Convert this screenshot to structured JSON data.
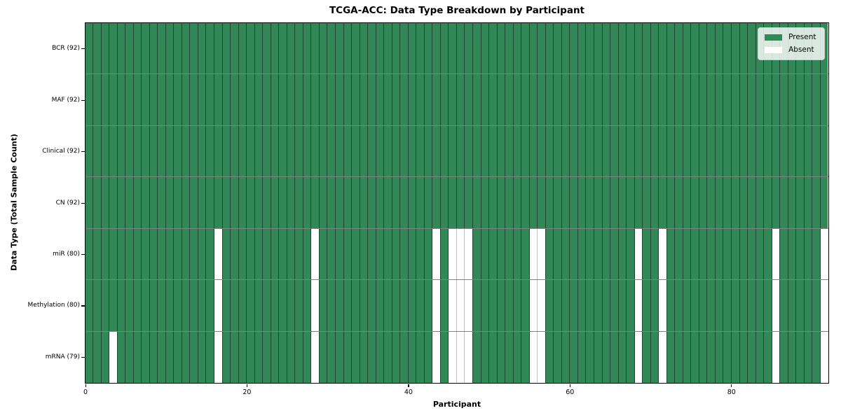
{
  "chart_data": {
    "type": "heatmap",
    "title": "TCGA-ACC: Data Type Breakdown by Participant",
    "xlabel": "Participant",
    "ylabel": "Data Type (Total Sample Count)",
    "n_participants": 92,
    "x_axis_range": [
      0,
      92
    ],
    "x_ticks": [
      0,
      20,
      40,
      60,
      80
    ],
    "legend_position": "upper right",
    "legend": [
      {
        "label": "Present",
        "color": "#2e8b57"
      },
      {
        "label": "Absent",
        "color": "#ffffff"
      }
    ],
    "rows": [
      {
        "label": "BCR (92)",
        "data_type": "BCR",
        "total_samples": 92,
        "absent_participants": []
      },
      {
        "label": "MAF (92)",
        "data_type": "MAF",
        "total_samples": 92,
        "absent_participants": []
      },
      {
        "label": "Clinical (92)",
        "data_type": "Clinical",
        "total_samples": 92,
        "absent_participants": []
      },
      {
        "label": "CN (92)",
        "data_type": "CN",
        "total_samples": 92,
        "absent_participants": []
      },
      {
        "label": "miR (80)",
        "data_type": "miR",
        "total_samples": 80,
        "absent_participants": [
          16,
          28,
          43,
          45,
          46,
          47,
          55,
          56,
          68,
          71,
          85,
          91
        ]
      },
      {
        "label": "Methylation (80)",
        "data_type": "Methylation",
        "total_samples": 80,
        "absent_participants": [
          16,
          28,
          43,
          45,
          46,
          47,
          55,
          56,
          68,
          71,
          85,
          91
        ]
      },
      {
        "label": "mRNA (79)",
        "data_type": "mRNA",
        "total_samples": 79,
        "absent_participants": [
          3,
          16,
          28,
          43,
          45,
          46,
          47,
          55,
          56,
          68,
          71,
          85,
          91
        ]
      }
    ],
    "colors": {
      "present": "#318756",
      "absent": "#ffffff",
      "present_cell_border": "#1e4631",
      "absent_cell_border": "#c2c2c2",
      "row_separator": "#808080",
      "plot_border": "#000000",
      "background": "#ffffff"
    }
  }
}
